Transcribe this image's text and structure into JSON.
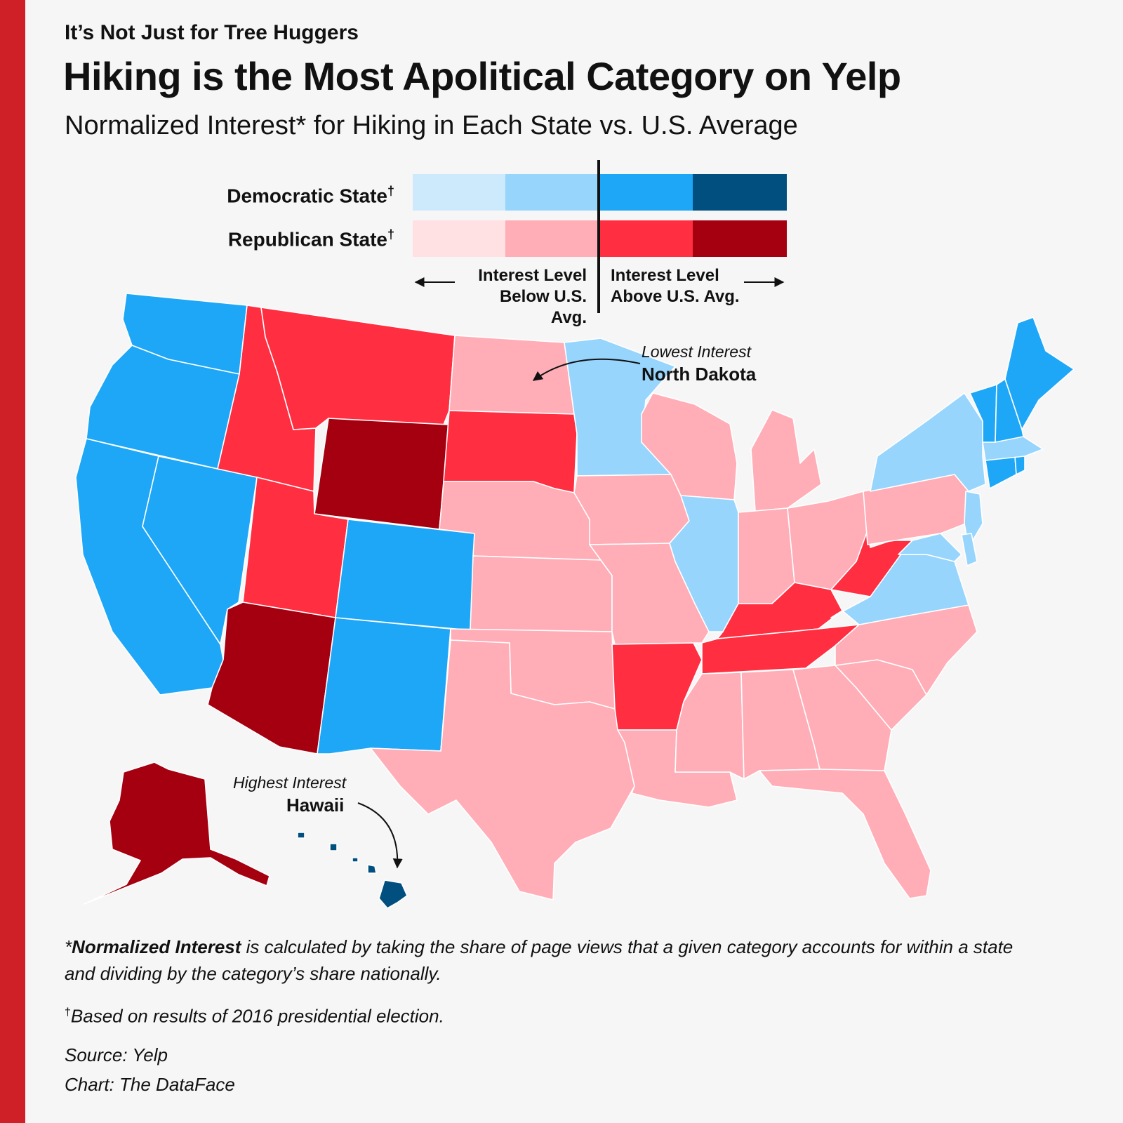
{
  "header": {
    "kicker": "It’s Not Just for Tree Huggers",
    "title": "Hiking is the Most Apolitical Category on Yelp",
    "subtitle": "Normalized Interest* for Hiking in Each State vs. U.S. Average"
  },
  "legend": {
    "democratic_label": "Democratic State",
    "republican_label": "Republican State",
    "dagger": "†",
    "democratic_colors": [
      "#cdeafd",
      "#97d5fd",
      "#1ea7f6",
      "#004f7e"
    ],
    "republican_colors": [
      "#ffe1e4",
      "#ffadb6",
      "#ff2e41",
      "#a50010"
    ],
    "below_line1": "Interest Level",
    "below_line2": "Below U.S. Avg.",
    "above_line1": "Interest Level",
    "above_line2": "Above U.S. Avg."
  },
  "annotations": {
    "lowest_label": "Lowest Interest",
    "lowest_state": "North Dakota",
    "highest_label": "Highest Interest",
    "highest_state": "Hawaii"
  },
  "states": [
    {
      "name": "Washington",
      "fill": "#1ea7f6"
    },
    {
      "name": "Oregon",
      "fill": "#1ea7f6"
    },
    {
      "name": "California",
      "fill": "#1ea7f6"
    },
    {
      "name": "Nevada",
      "fill": "#1ea7f6"
    },
    {
      "name": "Idaho",
      "fill": "#ff2e41"
    },
    {
      "name": "Montana",
      "fill": "#ff2e41"
    },
    {
      "name": "Wyoming",
      "fill": "#a50010"
    },
    {
      "name": "Utah",
      "fill": "#ff2e41"
    },
    {
      "name": "Arizona",
      "fill": "#a50010"
    },
    {
      "name": "Colorado",
      "fill": "#1ea7f6"
    },
    {
      "name": "New Mexico",
      "fill": "#1ea7f6"
    },
    {
      "name": "North Dakota",
      "fill": "#ffadb6"
    },
    {
      "name": "South Dakota",
      "fill": "#ff2e41"
    },
    {
      "name": "Nebraska",
      "fill": "#ffadb6"
    },
    {
      "name": "Kansas",
      "fill": "#ffadb6"
    },
    {
      "name": "Oklahoma",
      "fill": "#ffadb6"
    },
    {
      "name": "Texas",
      "fill": "#ffadb6"
    },
    {
      "name": "Minnesota",
      "fill": "#97d5fd"
    },
    {
      "name": "Iowa",
      "fill": "#ffadb6"
    },
    {
      "name": "Missouri",
      "fill": "#ffadb6"
    },
    {
      "name": "Arkansas",
      "fill": "#ff2e41"
    },
    {
      "name": "Louisiana",
      "fill": "#ffadb6"
    },
    {
      "name": "Wisconsin",
      "fill": "#ffadb6"
    },
    {
      "name": "Illinois",
      "fill": "#97d5fd"
    },
    {
      "name": "Michigan",
      "fill": "#ffadb6"
    },
    {
      "name": "Indiana",
      "fill": "#ffadb6"
    },
    {
      "name": "Ohio",
      "fill": "#ffadb6"
    },
    {
      "name": "Kentucky",
      "fill": "#ff2e41"
    },
    {
      "name": "Tennessee",
      "fill": "#ff2e41"
    },
    {
      "name": "Mississippi",
      "fill": "#ffadb6"
    },
    {
      "name": "Alabama",
      "fill": "#ffadb6"
    },
    {
      "name": "Georgia",
      "fill": "#ffadb6"
    },
    {
      "name": "Florida",
      "fill": "#ffadb6"
    },
    {
      "name": "South Carolina",
      "fill": "#ffadb6"
    },
    {
      "name": "North Carolina",
      "fill": "#ffadb6"
    },
    {
      "name": "Virginia",
      "fill": "#97d5fd"
    },
    {
      "name": "West Virginia",
      "fill": "#ff2e41"
    },
    {
      "name": "Pennsylvania",
      "fill": "#ffadb6"
    },
    {
      "name": "New York",
      "fill": "#97d5fd"
    },
    {
      "name": "New Jersey",
      "fill": "#97d5fd"
    },
    {
      "name": "Maryland",
      "fill": "#97d5fd"
    },
    {
      "name": "Delaware",
      "fill": "#97d5fd"
    },
    {
      "name": "Connecticut",
      "fill": "#1ea7f6"
    },
    {
      "name": "Rhode Island",
      "fill": "#1ea7f6"
    },
    {
      "name": "Massachusetts",
      "fill": "#97d5fd"
    },
    {
      "name": "Vermont",
      "fill": "#1ea7f6"
    },
    {
      "name": "New Hampshire",
      "fill": "#1ea7f6"
    },
    {
      "name": "Maine",
      "fill": "#1ea7f6"
    },
    {
      "name": "Alaska",
      "fill": "#a50010"
    },
    {
      "name": "Hawaii",
      "fill": "#004f7e"
    }
  ],
  "footnotes": {
    "norm_bold": "Normalized Interest",
    "norm_star": "*",
    "norm_line1_rest": " is calculated by taking the share of page views that a given category accounts for within a state",
    "norm_line2": "and dividing by the category’s share nationally.",
    "dagger": "†",
    "election_note": "Based on results of 2016 presidential election.",
    "source": "Source: Yelp",
    "credit": "Chart: The DataFace"
  }
}
